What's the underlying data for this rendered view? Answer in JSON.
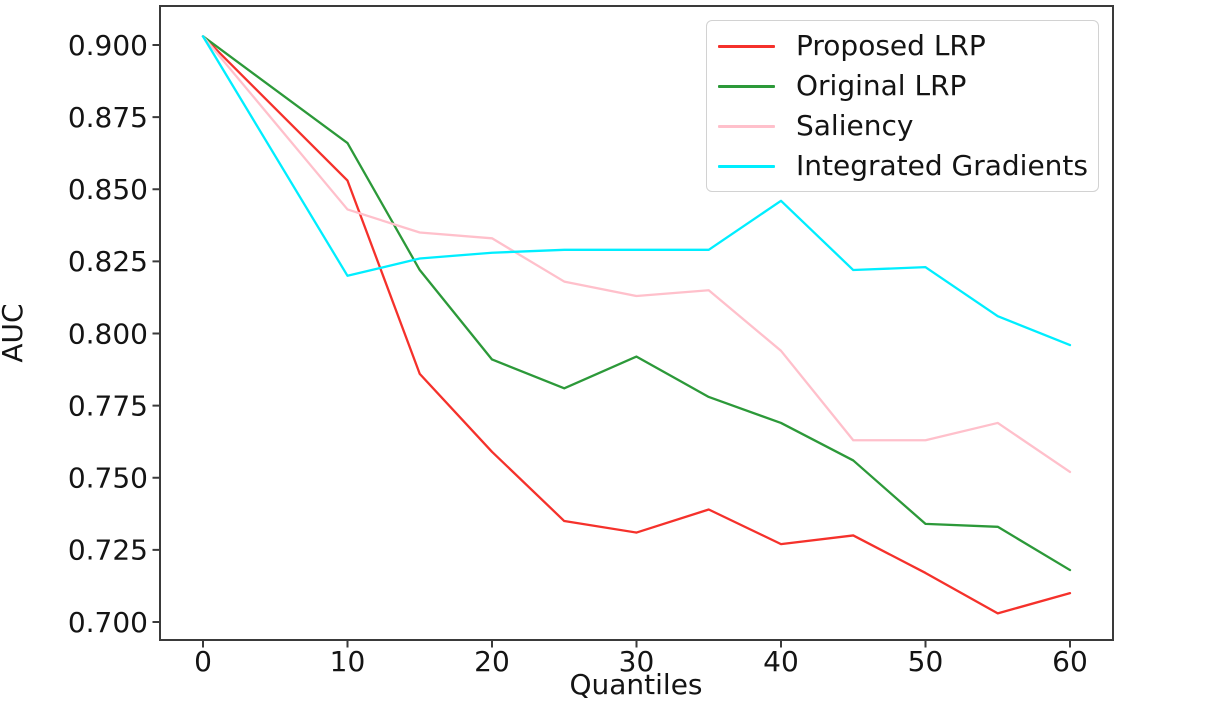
{
  "figure": {
    "background": "#ffffff"
  },
  "axes": {
    "x_label": "Quantiles",
    "y_label": "AUC",
    "x_ticks": [
      0,
      10,
      20,
      30,
      40,
      50,
      60
    ],
    "x_tick_labels": [
      "0",
      "10",
      "20",
      "30",
      "40",
      "50",
      "60"
    ],
    "y_ticks": [
      0.7,
      0.725,
      0.75,
      0.775,
      0.8,
      0.825,
      0.85,
      0.875,
      0.9
    ],
    "y_tick_labels": [
      "0.700",
      "0.725",
      "0.750",
      "0.775",
      "0.800",
      "0.825",
      "0.850",
      "0.875",
      "0.900"
    ],
    "spine_color": "#3a3a3a",
    "text_color": "#141414"
  },
  "chart_data": {
    "type": "line",
    "title": "",
    "xlabel": "Quantiles",
    "ylabel": "AUC",
    "xlim": [
      -3,
      63
    ],
    "ylim": [
      0.694,
      0.9135
    ],
    "grid": false,
    "legend_position": "upper right",
    "x": [
      0,
      10,
      15,
      20,
      25,
      30,
      35,
      40,
      45,
      50,
      55,
      60
    ],
    "series": [
      {
        "name": "Proposed LRP",
        "color": "#f5312b",
        "values": [
          0.903,
          0.853,
          0.786,
          0.759,
          0.735,
          0.731,
          0.739,
          0.727,
          0.73,
          0.717,
          0.703,
          0.71
        ]
      },
      {
        "name": "Original LRP",
        "color": "#2c9939",
        "values": [
          0.903,
          0.866,
          0.822,
          0.791,
          0.781,
          0.792,
          0.778,
          0.769,
          0.756,
          0.734,
          0.733,
          0.718
        ]
      },
      {
        "name": "Saliency",
        "color": "#ffc0cb",
        "values": [
          0.903,
          0.843,
          0.835,
          0.833,
          0.818,
          0.813,
          0.815,
          0.794,
          0.763,
          0.763,
          0.769,
          0.752
        ]
      },
      {
        "name": "Integrated Gradients",
        "color": "#00eeff",
        "values": [
          0.903,
          0.82,
          0.826,
          0.828,
          0.829,
          0.829,
          0.829,
          0.846,
          0.822,
          0.823,
          0.806,
          0.796
        ]
      }
    ]
  }
}
